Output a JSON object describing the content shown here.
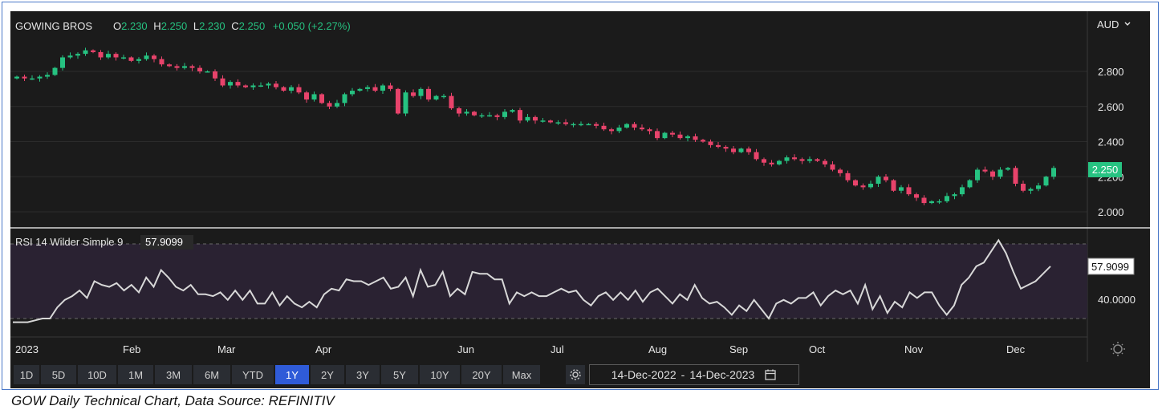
{
  "header": {
    "ticker": "GOWING BROS",
    "o_label": "O",
    "o_value": "2.230",
    "h_label": "H",
    "h_value": "2.250",
    "l_label": "L",
    "l_value": "2.230",
    "c_label": "C",
    "c_value": "2.250",
    "change": "+0.050 (+2.27%)",
    "currency": "AUD",
    "currency_chevron": "chevron-down-icon"
  },
  "price_axis": [
    "2.800",
    "2.600",
    "2.400",
    "2.200",
    "2.000"
  ],
  "price_badge": "2.250",
  "rsi": {
    "label": "RSI 14 Wilder Simple 9",
    "value": "57.9099",
    "axis_label": "40.0000"
  },
  "months": [
    "2023",
    "Feb",
    "Mar",
    "Apr",
    "Jun",
    "Jul",
    "Aug",
    "Sep",
    "Oct",
    "Nov",
    "Dec"
  ],
  "timeframes": [
    "1D",
    "5D",
    "10D",
    "1M",
    "3M",
    "6M",
    "YTD",
    "1Y",
    "2Y",
    "3Y",
    "5Y",
    "10Y",
    "20Y",
    "Max"
  ],
  "active_timeframe": "1Y",
  "date_range": {
    "start": "14-Dec-2022",
    "sep": "-",
    "end": "14-Dec-2023"
  },
  "caption": "GOW Daily Technical Chart, Data Source: REFINITIV",
  "colors": {
    "up": "#26c281",
    "down": "#e8436b",
    "badge": "#27c382",
    "active": "#2f5bd8",
    "background": "#1b1b1b"
  },
  "chart_data": [
    {
      "type": "candlestick",
      "title": "GOWING BROS",
      "currency": "AUD",
      "x_range": [
        "14-Dec-2022",
        "14-Dec-2023"
      ],
      "ylim": [
        1.95,
        3.0
      ],
      "y_ticks": [
        2.0,
        2.2,
        2.4,
        2.6,
        2.8
      ],
      "x_ticks": [
        "2023",
        "Feb",
        "Mar",
        "Apr",
        "Jun",
        "Jul",
        "Aug",
        "Sep",
        "Oct",
        "Nov",
        "Dec"
      ],
      "last": {
        "open": 2.23,
        "high": 2.25,
        "low": 2.23,
        "close": 2.25,
        "change": 0.05,
        "change_pct": 2.27
      },
      "closes": [
        2.77,
        2.76,
        2.76,
        2.77,
        2.78,
        2.82,
        2.88,
        2.89,
        2.9,
        2.92,
        2.91,
        2.88,
        2.9,
        2.88,
        2.88,
        2.86,
        2.87,
        2.89,
        2.87,
        2.84,
        2.83,
        2.82,
        2.83,
        2.82,
        2.8,
        2.8,
        2.76,
        2.72,
        2.74,
        2.72,
        2.71,
        2.72,
        2.72,
        2.73,
        2.71,
        2.69,
        2.71,
        2.68,
        2.64,
        2.67,
        2.62,
        2.6,
        2.62,
        2.67,
        2.69,
        2.7,
        2.71,
        2.69,
        2.72,
        2.7,
        2.56,
        2.68,
        2.66,
        2.7,
        2.64,
        2.66,
        2.66,
        2.59,
        2.56,
        2.57,
        2.55,
        2.55,
        2.55,
        2.54,
        2.57,
        2.58,
        2.52,
        2.54,
        2.52,
        2.52,
        2.51,
        2.51,
        2.5,
        2.5,
        2.5,
        2.5,
        2.49,
        2.47,
        2.46,
        2.48,
        2.5,
        2.48,
        2.47,
        2.46,
        2.42,
        2.45,
        2.44,
        2.42,
        2.43,
        2.41,
        2.4,
        2.38,
        2.37,
        2.36,
        2.34,
        2.36,
        2.34,
        2.3,
        2.28,
        2.27,
        2.29,
        2.31,
        2.3,
        2.29,
        2.3,
        2.29,
        2.27,
        2.24,
        2.22,
        2.18,
        2.15,
        2.14,
        2.16,
        2.2,
        2.18,
        2.12,
        2.14,
        2.1,
        2.08,
        2.05,
        2.06,
        2.06,
        2.09,
        2.1,
        2.14,
        2.18,
        2.24,
        2.23,
        2.2,
        2.24,
        2.25,
        2.16,
        2.12,
        2.13,
        2.15,
        2.2,
        2.25
      ]
    },
    {
      "type": "line",
      "title": "RSI 14 Wilder Simple 9",
      "last_value": 57.9099,
      "labeled_tick": 40.0,
      "band": [
        30,
        70
      ],
      "values": [
        28,
        28,
        28,
        29,
        30,
        30,
        36,
        40,
        42,
        45,
        41,
        50,
        48,
        47,
        49,
        45,
        48,
        44,
        52,
        47,
        56,
        52,
        47,
        45,
        48,
        43,
        43,
        42,
        44,
        40,
        45,
        40,
        45,
        38,
        38,
        44,
        37,
        42,
        38,
        36,
        39,
        36,
        43,
        46,
        45,
        51,
        50,
        50,
        48,
        50,
        52,
        46,
        47,
        52,
        42,
        56,
        47,
        48,
        55,
        42,
        46,
        43,
        55,
        54,
        54,
        51,
        51,
        38,
        44,
        42,
        44,
        42,
        42,
        44,
        46,
        44,
        45,
        40,
        37,
        42,
        44,
        40,
        44,
        40,
        45,
        39,
        44,
        46,
        42,
        38,
        43,
        40,
        48,
        41,
        38,
        39,
        36,
        32,
        37,
        34,
        40,
        35,
        30,
        38,
        40,
        38,
        41,
        41,
        44,
        37,
        42,
        45,
        43,
        45,
        38,
        48,
        35,
        42,
        33,
        39,
        36,
        44,
        41,
        44,
        44,
        37,
        32,
        37,
        48,
        52,
        58,
        60,
        66,
        72,
        65,
        55,
        46,
        48,
        50,
        54,
        58
      ]
    }
  ]
}
